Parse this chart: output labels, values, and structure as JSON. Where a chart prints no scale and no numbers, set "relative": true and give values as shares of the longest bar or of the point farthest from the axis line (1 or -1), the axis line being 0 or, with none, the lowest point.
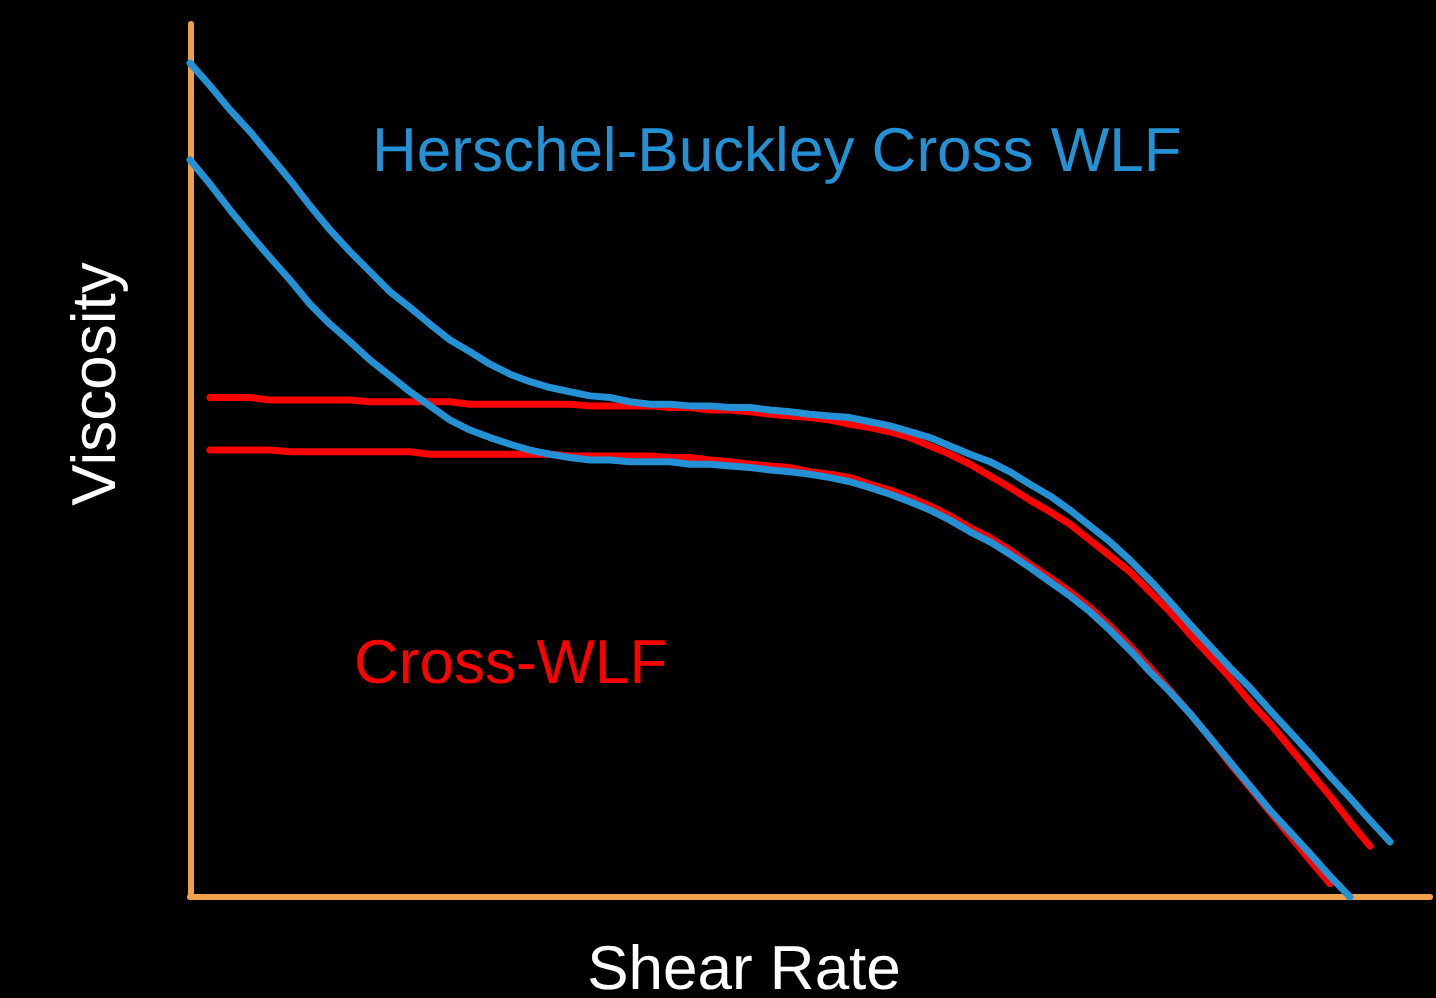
{
  "chart_data": {
    "type": "line",
    "relative": true,
    "xlabel": "Shear Rate",
    "ylabel": "Viscosity",
    "categories": [
      null,
      null,
      null,
      null,
      null,
      null,
      null,
      null,
      null,
      null,
      null,
      null,
      null,
      null,
      null,
      null,
      null,
      null,
      null,
      null,
      null,
      null,
      null,
      null,
      null,
      null,
      null,
      null,
      null,
      null,
      null,
      null,
      null,
      null,
      null,
      null,
      null,
      null,
      null,
      null,
      null,
      null,
      null,
      null,
      null,
      null,
      null,
      null,
      null,
      null,
      null,
      null,
      null,
      null,
      null,
      null,
      null,
      null,
      null,
      null,
      null,
      null,
      null
    ],
    "series": [
      {
        "name": "Cross-WLF",
        "color": "#ff0000",
        "values": [
          null,
          0.599,
          0.599,
          0.599,
          0.596,
          0.596,
          0.596,
          0.596,
          0.596,
          0.594,
          0.594,
          0.594,
          0.594,
          0.594,
          0.591,
          0.591,
          0.591,
          0.591,
          0.591,
          0.591,
          0.589,
          0.589,
          0.589,
          0.589,
          0.587,
          0.587,
          0.584,
          0.584,
          0.582,
          0.579,
          0.577,
          0.575,
          0.572,
          0.567,
          0.563,
          0.558,
          0.551,
          0.541,
          0.531,
          0.519,
          0.505,
          0.491,
          0.476,
          0.462,
          0.447,
          0.428,
          0.409,
          0.39,
          0.366,
          0.342,
          0.315,
          0.289,
          0.263,
          0.234,
          0.208,
          0.179,
          0.15,
          0.121,
          0.09,
          0.061,
          null,
          null,
          null
        ]
      },
      {
        "color": "#ff0000",
        "values": [
          null,
          0.536,
          0.536,
          0.536,
          0.536,
          0.534,
          0.534,
          0.534,
          0.534,
          0.534,
          0.534,
          0.534,
          0.531,
          0.531,
          0.531,
          0.531,
          0.531,
          0.531,
          0.531,
          0.529,
          0.529,
          0.529,
          0.529,
          0.529,
          0.527,
          0.527,
          0.524,
          0.522,
          0.519,
          0.517,
          0.515,
          0.51,
          0.507,
          0.503,
          0.495,
          0.488,
          0.479,
          0.469,
          0.457,
          0.443,
          0.431,
          0.416,
          0.399,
          0.383,
          0.366,
          0.347,
          0.325,
          0.301,
          0.275,
          0.248,
          0.22,
          0.191,
          0.16,
          0.131,
          0.102,
          0.073,
          0.044,
          0.016,
          null,
          null,
          null,
          null,
          null
        ]
      },
      {
        "name": "Herschel-Buckley Cross WLF",
        "color": "#2391d3",
        "values": [
          1,
          0.973,
          0.944,
          0.918,
          0.889,
          0.86,
          0.829,
          0.8,
          0.774,
          0.75,
          0.726,
          0.707,
          0.687,
          0.668,
          0.654,
          0.639,
          0.627,
          0.618,
          0.611,
          0.606,
          0.601,
          0.599,
          0.594,
          0.591,
          0.591,
          0.589,
          0.589,
          0.587,
          0.587,
          0.584,
          0.582,
          0.579,
          0.577,
          0.575,
          0.57,
          0.565,
          0.558,
          0.551,
          0.541,
          0.531,
          0.522,
          0.51,
          0.495,
          0.481,
          0.464,
          0.445,
          0.426,
          0.404,
          0.38,
          0.354,
          0.327,
          0.301,
          0.275,
          0.251,
          0.224,
          0.198,
          0.172,
          0.145,
          0.119,
          0.092,
          0.066,
          null,
          null
        ]
      },
      {
        "color": "#2391d3",
        "values": [
          0.884,
          0.855,
          0.824,
          0.795,
          0.767,
          0.74,
          0.711,
          0.687,
          0.666,
          0.644,
          0.625,
          0.606,
          0.589,
          0.572,
          0.56,
          0.551,
          0.543,
          0.536,
          0.531,
          0.527,
          0.524,
          0.524,
          0.522,
          0.522,
          0.522,
          0.519,
          0.519,
          0.517,
          0.515,
          0.512,
          0.51,
          0.507,
          0.503,
          0.498,
          0.491,
          0.483,
          0.474,
          0.464,
          0.452,
          0.438,
          0.426,
          0.411,
          0.395,
          0.378,
          0.361,
          0.342,
          0.32,
          0.296,
          0.27,
          0.246,
          0.22,
          0.191,
          0.162,
          0.133,
          0.104,
          0.078,
          0.052,
          0.025,
          0,
          null,
          null,
          null,
          null
        ]
      }
    ]
  }
}
